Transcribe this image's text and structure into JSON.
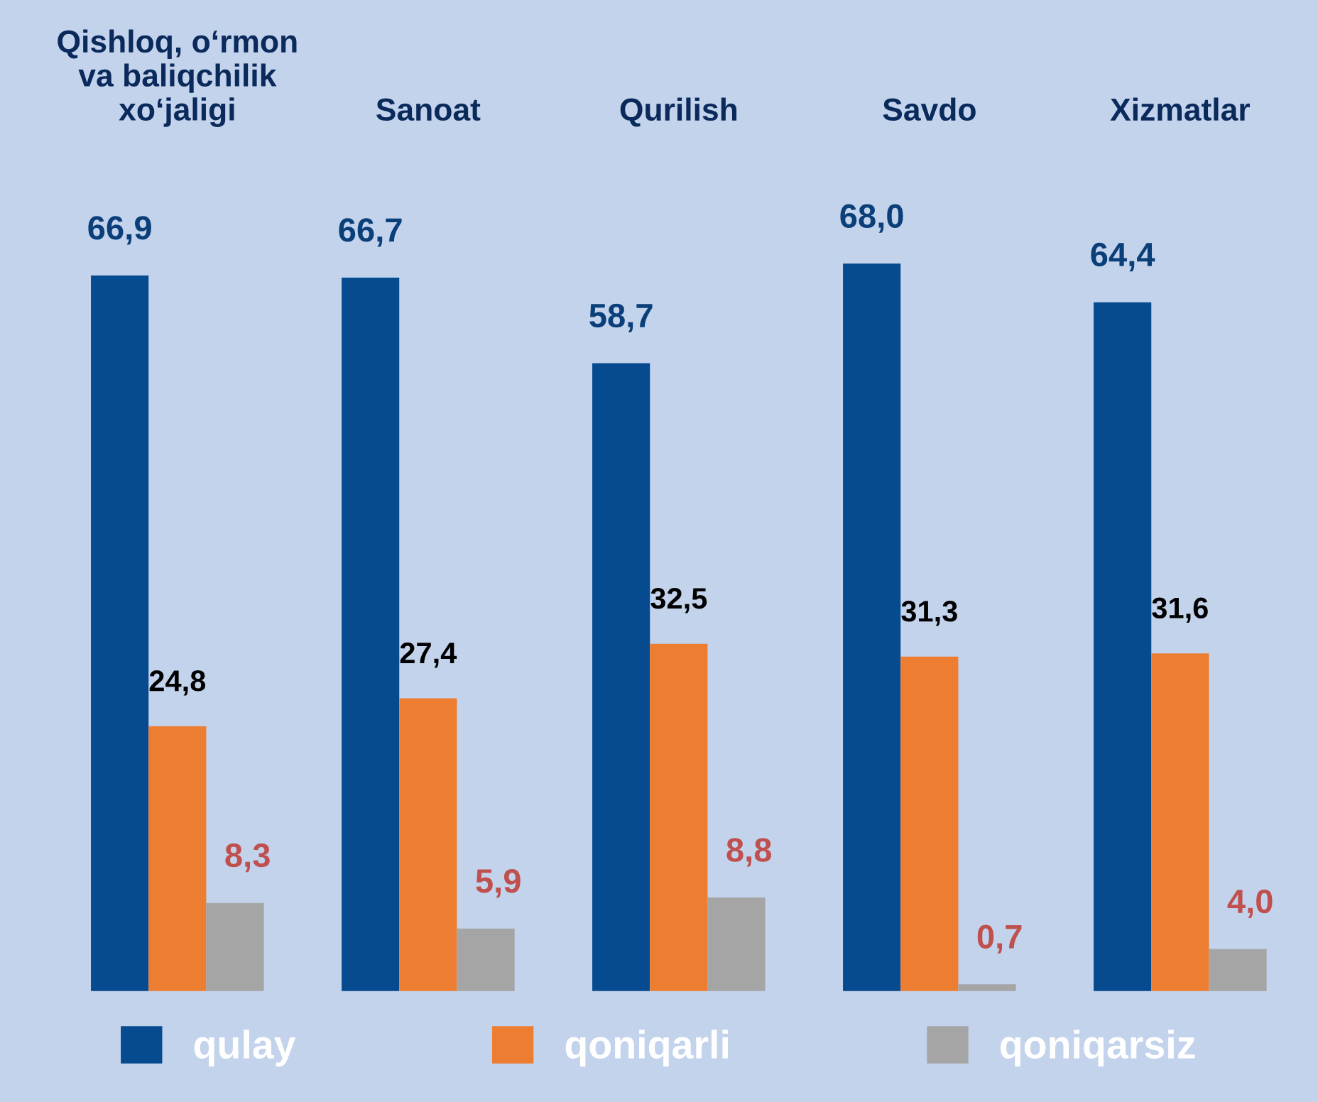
{
  "chart_data": {
    "type": "bar",
    "categories": [
      "Qishloq, o‘rmon\nva baliqchilik\nxo‘jaligi",
      "Sanoat",
      "Qurilish",
      "Savdo",
      "Xizmatlar"
    ],
    "series": [
      {
        "name": "qulay",
        "color": "#064a8f",
        "values": [
          66.9,
          66.7,
          58.7,
          68.0,
          64.4
        ],
        "value_labels": [
          "66,9",
          "66,7",
          "58,7",
          "68,0",
          "64,4"
        ]
      },
      {
        "name": "qoniqarli",
        "color": "#ed7d31",
        "values": [
          24.8,
          27.4,
          32.5,
          31.3,
          31.6
        ],
        "value_labels": [
          "24,8",
          "27,4",
          "32,5",
          "31,3",
          "31,6"
        ]
      },
      {
        "name": "qoniqarsiz",
        "color": "#a5a5a5",
        "values": [
          8.3,
          5.9,
          8.8,
          0.7,
          4.0
        ],
        "value_labels": [
          "8,3",
          "5,9",
          "8,8",
          "0,7",
          "4,0"
        ]
      }
    ],
    "legend": "bottom",
    "grid": false
  }
}
